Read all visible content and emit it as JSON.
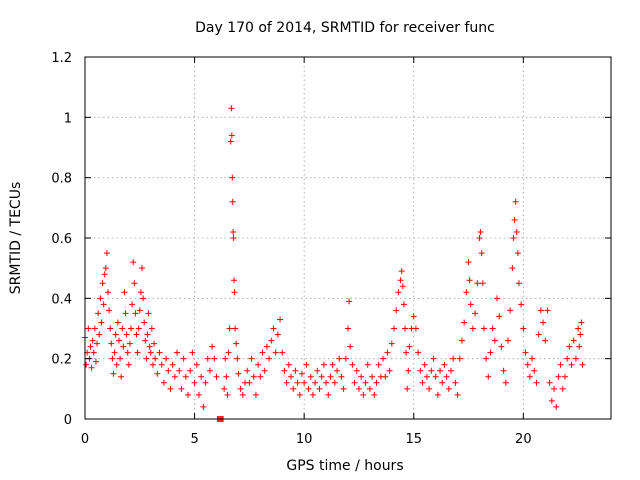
{
  "chart_data": {
    "type": "scatter",
    "title": "Day 170 of 2014, SRMTID for receiver func",
    "xlabel": "GPS time / hours",
    "ylabel": "SRMTID / TECUs",
    "xlim": [
      0,
      24
    ],
    "ylim": [
      0,
      1.2
    ],
    "xticks": [
      0,
      5,
      10,
      15,
      20
    ],
    "xtick_labels": [
      "0",
      "5",
      "10",
      "15",
      "20"
    ],
    "yticks": [
      0,
      0.2,
      0.4,
      0.6,
      0.8,
      1.0,
      1.2
    ],
    "ytick_labels": [
      "0",
      "0.2",
      "0.4",
      "0.6",
      "0.8",
      "1",
      "1.2"
    ],
    "grid": true,
    "marker": "plus",
    "color": "#ff0000",
    "series": [
      {
        "name": "SRMTID",
        "points": [
          [
            0.0,
            0.27
          ],
          [
            0.05,
            0.18
          ],
          [
            0.1,
            0.22
          ],
          [
            0.15,
            0.3
          ],
          [
            0.2,
            0.2
          ],
          [
            0.25,
            0.24
          ],
          [
            0.3,
            0.17
          ],
          [
            0.35,
            0.26
          ],
          [
            0.4,
            0.22
          ],
          [
            0.45,
            0.3
          ],
          [
            0.5,
            0.19
          ],
          [
            0.55,
            0.25
          ],
          [
            0.6,
            0.35
          ],
          [
            0.65,
            0.28
          ],
          [
            0.7,
            0.4
          ],
          [
            0.75,
            0.32
          ],
          [
            0.8,
            0.45
          ],
          [
            0.85,
            0.38
          ],
          [
            0.9,
            0.48
          ],
          [
            0.95,
            0.5
          ],
          [
            1.0,
            0.55
          ],
          [
            1.05,
            0.42
          ],
          [
            1.1,
            0.36
          ],
          [
            1.15,
            0.3
          ],
          [
            1.2,
            0.25
          ],
          [
            1.25,
            0.2
          ],
          [
            1.3,
            0.15
          ],
          [
            1.35,
            0.22
          ],
          [
            1.4,
            0.28
          ],
          [
            1.45,
            0.18
          ],
          [
            1.5,
            0.32
          ],
          [
            1.55,
            0.26
          ],
          [
            1.6,
            0.2
          ],
          [
            1.65,
            0.14
          ],
          [
            1.7,
            0.3
          ],
          [
            1.75,
            0.24
          ],
          [
            1.8,
            0.42
          ],
          [
            1.85,
            0.35
          ],
          [
            1.9,
            0.28
          ],
          [
            1.95,
            0.22
          ],
          [
            2.0,
            0.18
          ],
          [
            2.05,
            0.25
          ],
          [
            2.1,
            0.3
          ],
          [
            2.15,
            0.38
          ],
          [
            2.2,
            0.52
          ],
          [
            2.25,
            0.45
          ],
          [
            2.3,
            0.35
          ],
          [
            2.35,
            0.28
          ],
          [
            2.4,
            0.22
          ],
          [
            2.45,
            0.3
          ],
          [
            2.5,
            0.36
          ],
          [
            2.55,
            0.42
          ],
          [
            2.6,
            0.5
          ],
          [
            2.65,
            0.4
          ],
          [
            2.7,
            0.32
          ],
          [
            2.75,
            0.26
          ],
          [
            2.8,
            0.2
          ],
          [
            2.85,
            0.28
          ],
          [
            2.9,
            0.35
          ],
          [
            2.95,
            0.24
          ],
          [
            3.0,
            0.22
          ],
          [
            3.05,
            0.3
          ],
          [
            3.1,
            0.18
          ],
          [
            3.15,
            0.25
          ],
          [
            3.2,
            0.2
          ],
          [
            3.3,
            0.15
          ],
          [
            3.4,
            0.22
          ],
          [
            3.5,
            0.18
          ],
          [
            3.6,
            0.12
          ],
          [
            3.7,
            0.2
          ],
          [
            3.8,
            0.16
          ],
          [
            3.9,
            0.1
          ],
          [
            4.0,
            0.18
          ],
          [
            4.1,
            0.14
          ],
          [
            4.2,
            0.22
          ],
          [
            4.3,
            0.16
          ],
          [
            4.4,
            0.1
          ],
          [
            4.5,
            0.2
          ],
          [
            4.6,
            0.14
          ],
          [
            4.7,
            0.08
          ],
          [
            4.8,
            0.16
          ],
          [
            4.9,
            0.22
          ],
          [
            5.0,
            0.12
          ],
          [
            5.1,
            0.18
          ],
          [
            5.2,
            0.08
          ],
          [
            5.3,
            0.14
          ],
          [
            5.4,
            0.04
          ],
          [
            5.5,
            0.12
          ],
          [
            5.6,
            0.2
          ],
          [
            5.7,
            0.16
          ],
          [
            5.8,
            0.24
          ],
          [
            5.9,
            0.2
          ],
          [
            6.0,
            0.14
          ],
          [
            6.05,
            0.0
          ],
          [
            6.1,
            0.0
          ],
          [
            6.15,
            0.0
          ],
          [
            6.2,
            0.0
          ],
          [
            6.25,
            0.0
          ],
          [
            6.3,
            0.0
          ],
          [
            6.35,
            0.1
          ],
          [
            6.4,
            0.2
          ],
          [
            6.45,
            0.14
          ],
          [
            6.5,
            0.08
          ],
          [
            6.55,
            0.22
          ],
          [
            6.6,
            0.3
          ],
          [
            6.65,
            0.92
          ],
          [
            6.68,
            1.03
          ],
          [
            6.7,
            0.94
          ],
          [
            6.72,
            0.8
          ],
          [
            6.74,
            0.72
          ],
          [
            6.76,
            0.62
          ],
          [
            6.78,
            0.6
          ],
          [
            6.8,
            0.46
          ],
          [
            6.82,
            0.42
          ],
          [
            6.85,
            0.3
          ],
          [
            6.9,
            0.25
          ],
          [
            6.95,
            0.2
          ],
          [
            7.0,
            0.15
          ],
          [
            7.1,
            0.1
          ],
          [
            7.2,
            0.08
          ],
          [
            7.3,
            0.12
          ],
          [
            7.4,
            0.16
          ],
          [
            7.5,
            0.12
          ],
          [
            7.6,
            0.2
          ],
          [
            7.7,
            0.14
          ],
          [
            7.8,
            0.08
          ],
          [
            7.9,
            0.18
          ],
          [
            8.0,
            0.14
          ],
          [
            8.1,
            0.22
          ],
          [
            8.2,
            0.16
          ],
          [
            8.3,
            0.24
          ],
          [
            8.4,
            0.2
          ],
          [
            8.5,
            0.26
          ],
          [
            8.6,
            0.3
          ],
          [
            8.7,
            0.22
          ],
          [
            8.8,
            0.28
          ],
          [
            8.9,
            0.33
          ],
          [
            9.0,
            0.22
          ],
          [
            9.1,
            0.16
          ],
          [
            9.2,
            0.12
          ],
          [
            9.3,
            0.18
          ],
          [
            9.4,
            0.14
          ],
          [
            9.5,
            0.1
          ],
          [
            9.6,
            0.16
          ],
          [
            9.7,
            0.12
          ],
          [
            9.8,
            0.08
          ],
          [
            9.9,
            0.15
          ],
          [
            10.0,
            0.12
          ],
          [
            10.1,
            0.18
          ],
          [
            10.2,
            0.1
          ],
          [
            10.3,
            0.14
          ],
          [
            10.4,
            0.08
          ],
          [
            10.5,
            0.12
          ],
          [
            10.6,
            0.16
          ],
          [
            10.7,
            0.1
          ],
          [
            10.8,
            0.14
          ],
          [
            10.9,
            0.18
          ],
          [
            11.0,
            0.12
          ],
          [
            11.1,
            0.08
          ],
          [
            11.2,
            0.14
          ],
          [
            11.3,
            0.18
          ],
          [
            11.4,
            0.12
          ],
          [
            11.5,
            0.16
          ],
          [
            11.6,
            0.2
          ],
          [
            11.7,
            0.14
          ],
          [
            11.8,
            0.1
          ],
          [
            11.9,
            0.2
          ],
          [
            12.0,
            0.3
          ],
          [
            12.05,
            0.39
          ],
          [
            12.1,
            0.24
          ],
          [
            12.2,
            0.18
          ],
          [
            12.3,
            0.12
          ],
          [
            12.4,
            0.16
          ],
          [
            12.5,
            0.1
          ],
          [
            12.6,
            0.14
          ],
          [
            12.7,
            0.08
          ],
          [
            12.8,
            0.12
          ],
          [
            12.9,
            0.18
          ],
          [
            13.0,
            0.1
          ],
          [
            13.1,
            0.14
          ],
          [
            13.2,
            0.08
          ],
          [
            13.3,
            0.12
          ],
          [
            13.4,
            0.18
          ],
          [
            13.5,
            0.14
          ],
          [
            13.6,
            0.2
          ],
          [
            13.7,
            0.14
          ],
          [
            13.8,
            0.22
          ],
          [
            13.9,
            0.16
          ],
          [
            14.0,
            0.25
          ],
          [
            14.1,
            0.3
          ],
          [
            14.2,
            0.36
          ],
          [
            14.3,
            0.42
          ],
          [
            14.4,
            0.46
          ],
          [
            14.45,
            0.49
          ],
          [
            14.5,
            0.44
          ],
          [
            14.55,
            0.38
          ],
          [
            14.6,
            0.3
          ],
          [
            14.65,
            0.22
          ],
          [
            14.7,
            0.1
          ],
          [
            14.75,
            0.16
          ],
          [
            14.8,
            0.24
          ],
          [
            14.9,
            0.3
          ],
          [
            15.0,
            0.34
          ],
          [
            15.1,
            0.3
          ],
          [
            15.2,
            0.22
          ],
          [
            15.3,
            0.16
          ],
          [
            15.4,
            0.12
          ],
          [
            15.5,
            0.18
          ],
          [
            15.6,
            0.14
          ],
          [
            15.7,
            0.1
          ],
          [
            15.8,
            0.16
          ],
          [
            15.9,
            0.2
          ],
          [
            16.0,
            0.14
          ],
          [
            16.1,
            0.08
          ],
          [
            16.2,
            0.16
          ],
          [
            16.3,
            0.12
          ],
          [
            16.4,
            0.18
          ],
          [
            16.5,
            0.14
          ],
          [
            16.6,
            0.1
          ],
          [
            16.7,
            0.16
          ],
          [
            16.8,
            0.2
          ],
          [
            16.9,
            0.12
          ],
          [
            17.0,
            0.08
          ],
          [
            17.1,
            0.2
          ],
          [
            17.2,
            0.26
          ],
          [
            17.3,
            0.32
          ],
          [
            17.4,
            0.42
          ],
          [
            17.5,
            0.52
          ],
          [
            17.55,
            0.46
          ],
          [
            17.6,
            0.38
          ],
          [
            17.7,
            0.3
          ],
          [
            17.8,
            0.35
          ],
          [
            17.9,
            0.45
          ],
          [
            18.0,
            0.6
          ],
          [
            18.05,
            0.62
          ],
          [
            18.1,
            0.55
          ],
          [
            18.15,
            0.45
          ],
          [
            18.2,
            0.3
          ],
          [
            18.3,
            0.2
          ],
          [
            18.4,
            0.14
          ],
          [
            18.5,
            0.22
          ],
          [
            18.6,
            0.3
          ],
          [
            18.7,
            0.26
          ],
          [
            18.8,
            0.4
          ],
          [
            18.9,
            0.34
          ],
          [
            19.0,
            0.24
          ],
          [
            19.1,
            0.16
          ],
          [
            19.2,
            0.12
          ],
          [
            19.3,
            0.26
          ],
          [
            19.4,
            0.36
          ],
          [
            19.5,
            0.5
          ],
          [
            19.55,
            0.6
          ],
          [
            19.6,
            0.66
          ],
          [
            19.65,
            0.72
          ],
          [
            19.7,
            0.62
          ],
          [
            19.75,
            0.55
          ],
          [
            19.8,
            0.45
          ],
          [
            19.9,
            0.38
          ],
          [
            20.0,
            0.3
          ],
          [
            20.1,
            0.22
          ],
          [
            20.2,
            0.18
          ],
          [
            20.3,
            0.14
          ],
          [
            20.4,
            0.2
          ],
          [
            20.5,
            0.16
          ],
          [
            20.6,
            0.12
          ],
          [
            20.7,
            0.28
          ],
          [
            20.8,
            0.36
          ],
          [
            20.9,
            0.32
          ],
          [
            21.0,
            0.26
          ],
          [
            21.1,
            0.36
          ],
          [
            21.2,
            0.12
          ],
          [
            21.3,
            0.06
          ],
          [
            21.4,
            0.1
          ],
          [
            21.5,
            0.04
          ],
          [
            21.6,
            0.14
          ],
          [
            21.7,
            0.18
          ],
          [
            21.8,
            0.1
          ],
          [
            21.9,
            0.14
          ],
          [
            22.0,
            0.2
          ],
          [
            22.1,
            0.24
          ],
          [
            22.2,
            0.18
          ],
          [
            22.3,
            0.26
          ],
          [
            22.4,
            0.2
          ],
          [
            22.5,
            0.3
          ],
          [
            22.55,
            0.24
          ],
          [
            22.6,
            0.28
          ],
          [
            22.65,
            0.32
          ],
          [
            22.7,
            0.18
          ]
        ]
      }
    ]
  }
}
